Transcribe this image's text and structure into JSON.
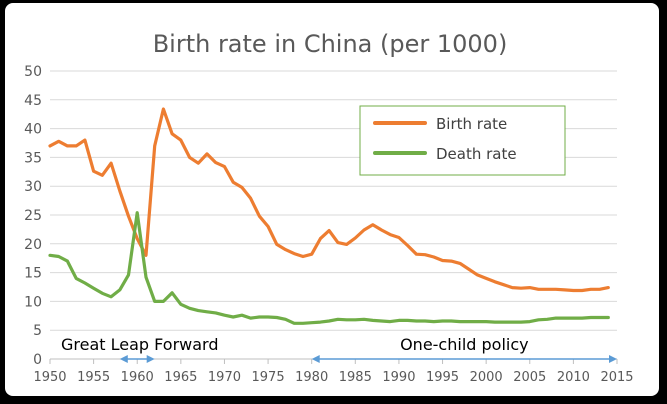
{
  "chart_data": {
    "type": "line",
    "title": "Birth rate in China (per 1000)",
    "xlabel": "",
    "ylabel": "",
    "xlim": [
      1950,
      2015
    ],
    "ylim": [
      0,
      50
    ],
    "x_ticks": [
      1950,
      1955,
      1960,
      1965,
      1970,
      1975,
      1980,
      1985,
      1990,
      1995,
      2000,
      2005,
      2010,
      2015
    ],
    "y_ticks": [
      0,
      5,
      10,
      15,
      20,
      25,
      30,
      35,
      40,
      45,
      50
    ],
    "grid": true,
    "legend": "top-right",
    "series": [
      {
        "name": "Birth rate",
        "color": "#ED7D31",
        "points": [
          [
            1950,
            37.0
          ],
          [
            1951,
            37.8
          ],
          [
            1952,
            37.0
          ],
          [
            1953,
            37.0
          ],
          [
            1954,
            38.0
          ],
          [
            1955,
            32.6
          ],
          [
            1956,
            31.9
          ],
          [
            1957,
            34.0
          ],
          [
            1958,
            29.2
          ],
          [
            1959,
            24.8
          ],
          [
            1960,
            20.9
          ],
          [
            1961,
            18.0
          ],
          [
            1962,
            37.0
          ],
          [
            1963,
            43.4
          ],
          [
            1964,
            39.1
          ],
          [
            1965,
            38.0
          ],
          [
            1966,
            35.0
          ],
          [
            1967,
            34.0
          ],
          [
            1968,
            35.6
          ],
          [
            1969,
            34.1
          ],
          [
            1970,
            33.4
          ],
          [
            1971,
            30.7
          ],
          [
            1972,
            29.8
          ],
          [
            1973,
            27.9
          ],
          [
            1974,
            24.8
          ],
          [
            1975,
            23.0
          ],
          [
            1976,
            19.9
          ],
          [
            1977,
            19.0
          ],
          [
            1978,
            18.3
          ],
          [
            1979,
            17.8
          ],
          [
            1980,
            18.2
          ],
          [
            1981,
            20.9
          ],
          [
            1982,
            22.3
          ],
          [
            1983,
            20.2
          ],
          [
            1984,
            19.9
          ],
          [
            1985,
            21.0
          ],
          [
            1986,
            22.4
          ],
          [
            1987,
            23.3
          ],
          [
            1988,
            22.4
          ],
          [
            1989,
            21.6
          ],
          [
            1990,
            21.1
          ],
          [
            1991,
            19.7
          ],
          [
            1992,
            18.2
          ],
          [
            1993,
            18.1
          ],
          [
            1994,
            17.7
          ],
          [
            1995,
            17.1
          ],
          [
            1996,
            17.0
          ],
          [
            1997,
            16.6
          ],
          [
            1998,
            15.6
          ],
          [
            1999,
            14.6
          ],
          [
            2000,
            14.0
          ],
          [
            2001,
            13.4
          ],
          [
            2002,
            12.9
          ],
          [
            2003,
            12.4
          ],
          [
            2004,
            12.3
          ],
          [
            2005,
            12.4
          ],
          [
            2006,
            12.1
          ],
          [
            2007,
            12.1
          ],
          [
            2008,
            12.1
          ],
          [
            2009,
            12.0
          ],
          [
            2010,
            11.9
          ],
          [
            2011,
            11.9
          ],
          [
            2012,
            12.1
          ],
          [
            2013,
            12.1
          ],
          [
            2014,
            12.4
          ]
        ]
      },
      {
        "name": "Death rate",
        "color": "#70AD47",
        "points": [
          [
            1950,
            18.0
          ],
          [
            1951,
            17.8
          ],
          [
            1952,
            17.0
          ],
          [
            1953,
            14.0
          ],
          [
            1954,
            13.2
          ],
          [
            1955,
            12.3
          ],
          [
            1956,
            11.4
          ],
          [
            1957,
            10.8
          ],
          [
            1958,
            12.0
          ],
          [
            1959,
            14.6
          ],
          [
            1960,
            25.4
          ],
          [
            1961,
            14.2
          ],
          [
            1962,
            10.0
          ],
          [
            1963,
            10.0
          ],
          [
            1964,
            11.5
          ],
          [
            1965,
            9.5
          ],
          [
            1966,
            8.8
          ],
          [
            1967,
            8.4
          ],
          [
            1968,
            8.2
          ],
          [
            1969,
            8.0
          ],
          [
            1970,
            7.6
          ],
          [
            1971,
            7.3
          ],
          [
            1972,
            7.6
          ],
          [
            1973,
            7.1
          ],
          [
            1974,
            7.3
          ],
          [
            1975,
            7.3
          ],
          [
            1976,
            7.2
          ],
          [
            1977,
            6.9
          ],
          [
            1978,
            6.2
          ],
          [
            1979,
            6.2
          ],
          [
            1980,
            6.3
          ],
          [
            1981,
            6.4
          ],
          [
            1982,
            6.6
          ],
          [
            1983,
            6.9
          ],
          [
            1984,
            6.8
          ],
          [
            1985,
            6.8
          ],
          [
            1986,
            6.9
          ],
          [
            1987,
            6.7
          ],
          [
            1988,
            6.6
          ],
          [
            1989,
            6.5
          ],
          [
            1990,
            6.7
          ],
          [
            1991,
            6.7
          ],
          [
            1992,
            6.6
          ],
          [
            1993,
            6.6
          ],
          [
            1994,
            6.5
          ],
          [
            1995,
            6.6
          ],
          [
            1996,
            6.6
          ],
          [
            1997,
            6.5
          ],
          [
            1998,
            6.5
          ],
          [
            1999,
            6.5
          ],
          [
            2000,
            6.5
          ],
          [
            2001,
            6.4
          ],
          [
            2002,
            6.4
          ],
          [
            2003,
            6.4
          ],
          [
            2004,
            6.4
          ],
          [
            2005,
            6.5
          ],
          [
            2006,
            6.8
          ],
          [
            2007,
            6.9
          ],
          [
            2008,
            7.1
          ],
          [
            2009,
            7.1
          ],
          [
            2010,
            7.1
          ],
          [
            2011,
            7.1
          ],
          [
            2012,
            7.2
          ],
          [
            2013,
            7.2
          ],
          [
            2014,
            7.2
          ]
        ]
      }
    ],
    "annotations": [
      {
        "text": "Great Leap Forward",
        "from": 1958,
        "to": 1962,
        "arrow_color": "#5B9BD5"
      },
      {
        "text": "One-child policy",
        "from": 1980,
        "to": 2015,
        "arrow_color": "#5B9BD5"
      }
    ]
  }
}
